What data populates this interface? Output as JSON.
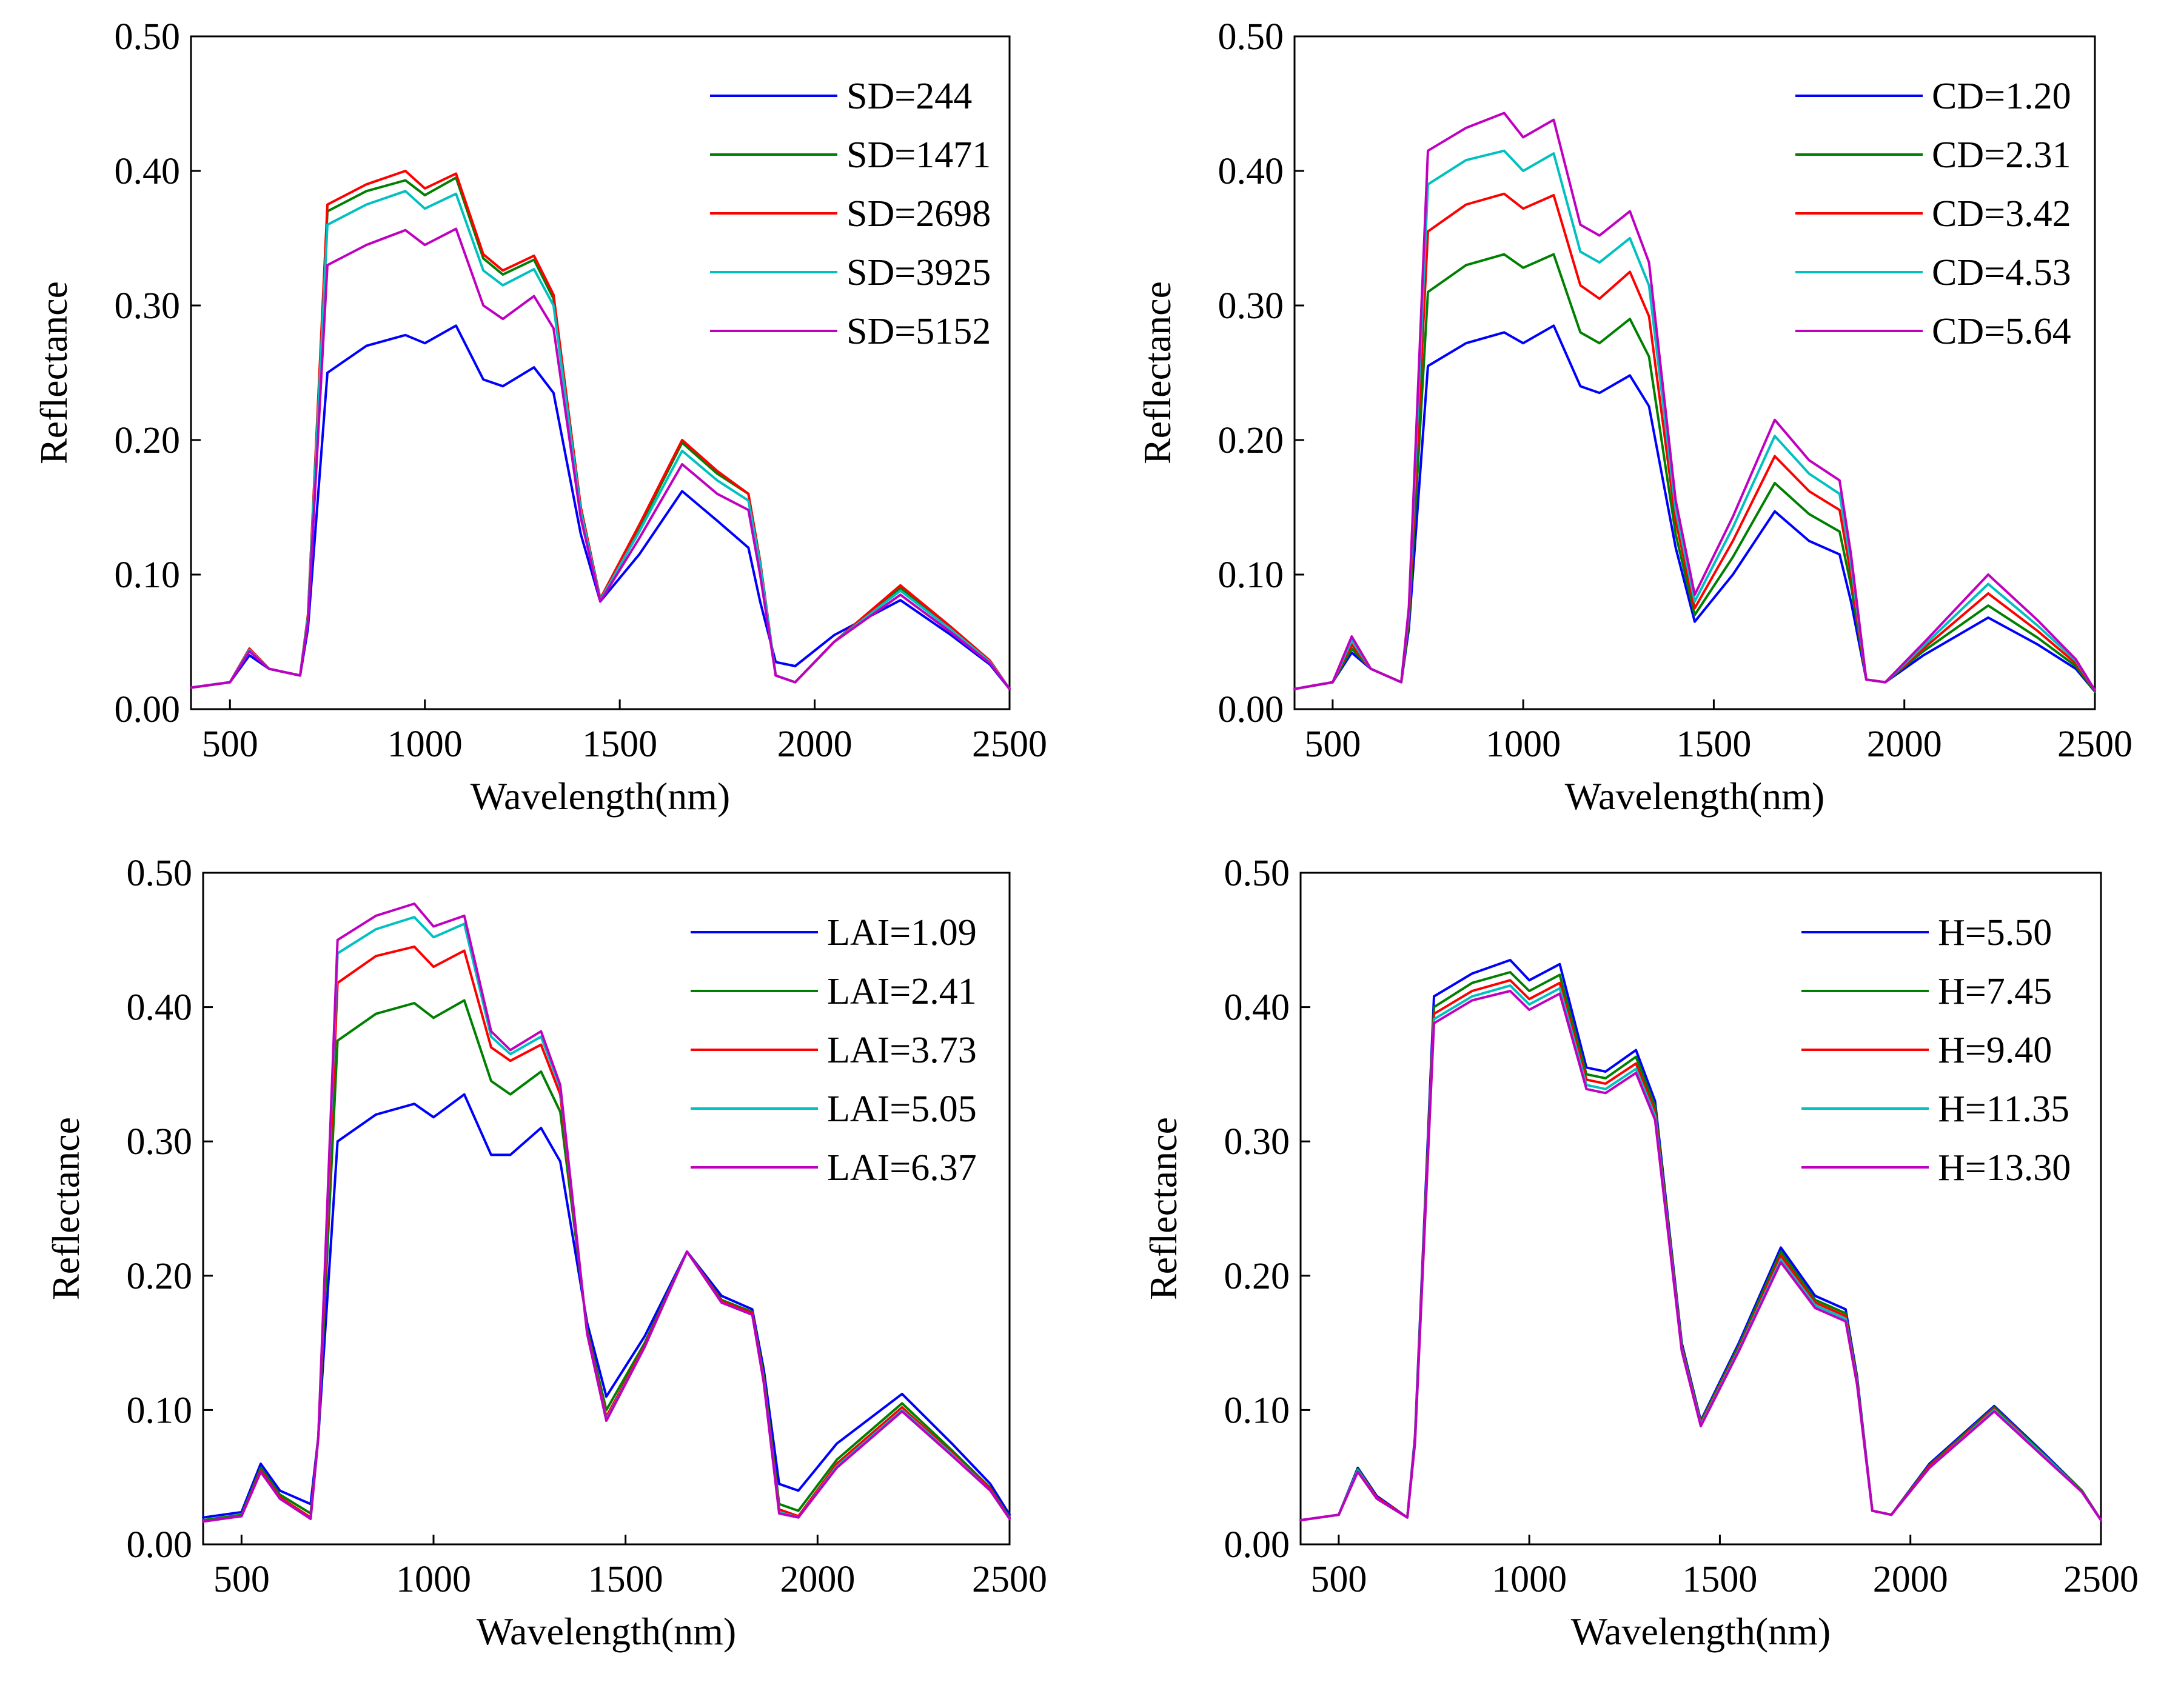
{
  "chart_data": [
    {
      "type": "line",
      "xlabel": "Wavelength(nm)",
      "ylabel": "Reflectance",
      "xlim": [
        400,
        2500
      ],
      "ylim": [
        0,
        0.5
      ],
      "xticks": [
        500,
        1000,
        1500,
        2000,
        2500
      ],
      "yticks": [
        0.0,
        0.1,
        0.2,
        0.3,
        0.4,
        0.5
      ],
      "ytick_labels": [
        "0.00",
        "0.10",
        "0.20",
        "0.30",
        "0.40",
        "0.50"
      ],
      "legend_position": "top-right",
      "grid": false,
      "x": [
        400,
        500,
        550,
        600,
        680,
        700,
        750,
        850,
        950,
        1000,
        1080,
        1150,
        1200,
        1280,
        1330,
        1400,
        1450,
        1550,
        1660,
        1750,
        1830,
        1860,
        1900,
        1950,
        2050,
        2220,
        2350,
        2450,
        2500
      ],
      "series": [
        {
          "name": "SD=244",
          "color": "#0000ff",
          "values": [
            0.016,
            0.02,
            0.04,
            0.03,
            0.025,
            0.06,
            0.25,
            0.27,
            0.278,
            0.272,
            0.285,
            0.245,
            0.24,
            0.254,
            0.235,
            0.13,
            0.08,
            0.115,
            0.162,
            0.14,
            0.12,
            0.08,
            0.035,
            0.032,
            0.055,
            0.081,
            0.055,
            0.033,
            0.015
          ]
        },
        {
          "name": "SD=1471",
          "color": "#008000",
          "values": [
            0.016,
            0.02,
            0.045,
            0.03,
            0.025,
            0.07,
            0.37,
            0.385,
            0.393,
            0.382,
            0.395,
            0.335,
            0.323,
            0.334,
            0.305,
            0.15,
            0.082,
            0.135,
            0.198,
            0.175,
            0.16,
            0.11,
            0.025,
            0.02,
            0.05,
            0.09,
            0.06,
            0.035,
            0.015
          ]
        },
        {
          "name": "SD=2698",
          "color": "#ff0000",
          "values": [
            0.016,
            0.02,
            0.045,
            0.03,
            0.025,
            0.07,
            0.375,
            0.39,
            0.4,
            0.387,
            0.398,
            0.338,
            0.326,
            0.337,
            0.308,
            0.15,
            0.082,
            0.137,
            0.2,
            0.177,
            0.16,
            0.11,
            0.025,
            0.02,
            0.05,
            0.092,
            0.061,
            0.036,
            0.015
          ]
        },
        {
          "name": "SD=3925",
          "color": "#00c0c0",
          "values": [
            0.016,
            0.02,
            0.044,
            0.03,
            0.025,
            0.068,
            0.36,
            0.375,
            0.385,
            0.372,
            0.383,
            0.326,
            0.315,
            0.327,
            0.3,
            0.147,
            0.081,
            0.132,
            0.192,
            0.17,
            0.155,
            0.108,
            0.025,
            0.02,
            0.05,
            0.088,
            0.059,
            0.035,
            0.015
          ]
        },
        {
          "name": "SD=5152",
          "color": "#c000c0",
          "values": [
            0.016,
            0.02,
            0.043,
            0.03,
            0.025,
            0.065,
            0.33,
            0.345,
            0.356,
            0.345,
            0.357,
            0.3,
            0.29,
            0.307,
            0.283,
            0.142,
            0.08,
            0.127,
            0.182,
            0.16,
            0.148,
            0.1,
            0.025,
            0.02,
            0.05,
            0.085,
            0.057,
            0.034,
            0.015
          ]
        }
      ]
    },
    {
      "type": "line",
      "xlabel": "Wavelength(nm)",
      "ylabel": "Reflectance",
      "xlim": [
        400,
        2500
      ],
      "ylim": [
        0,
        0.5
      ],
      "xticks": [
        500,
        1000,
        1500,
        2000,
        2500
      ],
      "yticks": [
        0.0,
        0.1,
        0.2,
        0.3,
        0.4,
        0.5
      ],
      "ytick_labels": [
        "0.00",
        "0.10",
        "0.20",
        "0.30",
        "0.40",
        "0.50"
      ],
      "legend_position": "top-right",
      "grid": false,
      "x": [
        400,
        500,
        550,
        600,
        680,
        700,
        750,
        850,
        950,
        1000,
        1080,
        1150,
        1200,
        1280,
        1330,
        1400,
        1450,
        1550,
        1660,
        1750,
        1830,
        1860,
        1900,
        1950,
        2050,
        2220,
        2350,
        2450,
        2500
      ],
      "series": [
        {
          "name": "CD=1.20",
          "color": "#0000ff",
          "values": [
            0.015,
            0.02,
            0.042,
            0.03,
            0.02,
            0.06,
            0.255,
            0.272,
            0.28,
            0.272,
            0.285,
            0.24,
            0.235,
            0.248,
            0.225,
            0.12,
            0.065,
            0.1,
            0.147,
            0.125,
            0.115,
            0.08,
            0.022,
            0.02,
            0.04,
            0.068,
            0.048,
            0.03,
            0.013
          ]
        },
        {
          "name": "CD=2.31",
          "color": "#008000",
          "values": [
            0.015,
            0.02,
            0.045,
            0.03,
            0.02,
            0.065,
            0.31,
            0.33,
            0.338,
            0.328,
            0.338,
            0.28,
            0.272,
            0.29,
            0.262,
            0.13,
            0.07,
            0.113,
            0.168,
            0.145,
            0.132,
            0.092,
            0.022,
            0.02,
            0.043,
            0.077,
            0.053,
            0.032,
            0.013
          ]
        },
        {
          "name": "CD=3.42",
          "color": "#ff0000",
          "values": [
            0.015,
            0.02,
            0.048,
            0.03,
            0.02,
            0.07,
            0.355,
            0.375,
            0.383,
            0.372,
            0.382,
            0.315,
            0.305,
            0.325,
            0.292,
            0.14,
            0.075,
            0.125,
            0.188,
            0.162,
            0.148,
            0.1,
            0.022,
            0.02,
            0.045,
            0.086,
            0.058,
            0.034,
            0.014
          ]
        },
        {
          "name": "CD=4.53",
          "color": "#00c0c0",
          "values": [
            0.015,
            0.02,
            0.051,
            0.03,
            0.02,
            0.073,
            0.39,
            0.408,
            0.415,
            0.4,
            0.413,
            0.34,
            0.332,
            0.35,
            0.315,
            0.148,
            0.08,
            0.135,
            0.203,
            0.175,
            0.16,
            0.108,
            0.022,
            0.02,
            0.047,
            0.093,
            0.062,
            0.036,
            0.014
          ]
        },
        {
          "name": "CD=5.64",
          "color": "#c000c0",
          "values": [
            0.015,
            0.02,
            0.054,
            0.03,
            0.02,
            0.076,
            0.415,
            0.432,
            0.443,
            0.425,
            0.438,
            0.36,
            0.352,
            0.37,
            0.332,
            0.155,
            0.085,
            0.143,
            0.215,
            0.185,
            0.17,
            0.115,
            0.022,
            0.02,
            0.049,
            0.1,
            0.066,
            0.037,
            0.014
          ]
        }
      ]
    },
    {
      "type": "line",
      "xlabel": "Wavelength(nm)",
      "ylabel": "Reflectance",
      "xlim": [
        400,
        2500
      ],
      "ylim": [
        0,
        0.5
      ],
      "xticks": [
        500,
        1000,
        1500,
        2000,
        2500
      ],
      "yticks": [
        0.0,
        0.1,
        0.2,
        0.3,
        0.4,
        0.5
      ],
      "ytick_labels": [
        "0.00",
        "0.10",
        "0.20",
        "0.30",
        "0.40",
        "0.50"
      ],
      "legend_position": "top-right",
      "grid": false,
      "x": [
        400,
        500,
        550,
        600,
        680,
        700,
        750,
        850,
        950,
        1000,
        1080,
        1150,
        1200,
        1280,
        1330,
        1400,
        1450,
        1550,
        1660,
        1750,
        1830,
        1860,
        1900,
        1950,
        2050,
        2220,
        2350,
        2450,
        2500
      ],
      "series": [
        {
          "name": "LAI=1.09",
          "color": "#0000ff",
          "values": [
            0.02,
            0.024,
            0.06,
            0.04,
            0.03,
            0.08,
            0.3,
            0.32,
            0.328,
            0.318,
            0.335,
            0.29,
            0.29,
            0.31,
            0.285,
            0.165,
            0.11,
            0.155,
            0.218,
            0.185,
            0.175,
            0.13,
            0.045,
            0.04,
            0.075,
            0.112,
            0.075,
            0.045,
            0.022
          ]
        },
        {
          "name": "LAI=2.41",
          "color": "#008000",
          "values": [
            0.018,
            0.022,
            0.057,
            0.037,
            0.023,
            0.08,
            0.375,
            0.395,
            0.403,
            0.392,
            0.405,
            0.345,
            0.335,
            0.352,
            0.322,
            0.16,
            0.1,
            0.15,
            0.218,
            0.182,
            0.173,
            0.125,
            0.03,
            0.025,
            0.063,
            0.105,
            0.07,
            0.042,
            0.02
          ]
        },
        {
          "name": "LAI=3.73",
          "color": "#ff0000",
          "values": [
            0.017,
            0.021,
            0.055,
            0.035,
            0.02,
            0.08,
            0.418,
            0.438,
            0.445,
            0.43,
            0.442,
            0.37,
            0.36,
            0.372,
            0.335,
            0.158,
            0.095,
            0.148,
            0.218,
            0.181,
            0.172,
            0.122,
            0.026,
            0.021,
            0.06,
            0.102,
            0.068,
            0.041,
            0.019
          ]
        },
        {
          "name": "LAI=5.05",
          "color": "#00c0c0",
          "values": [
            0.017,
            0.021,
            0.054,
            0.034,
            0.019,
            0.08,
            0.44,
            0.458,
            0.467,
            0.452,
            0.462,
            0.378,
            0.365,
            0.378,
            0.34,
            0.157,
            0.093,
            0.147,
            0.218,
            0.18,
            0.171,
            0.121,
            0.024,
            0.02,
            0.058,
            0.1,
            0.067,
            0.04,
            0.019
          ]
        },
        {
          "name": "LAI=6.37",
          "color": "#c000c0",
          "values": [
            0.017,
            0.021,
            0.054,
            0.034,
            0.019,
            0.08,
            0.45,
            0.468,
            0.477,
            0.46,
            0.468,
            0.382,
            0.368,
            0.382,
            0.342,
            0.157,
            0.092,
            0.147,
            0.218,
            0.18,
            0.171,
            0.12,
            0.023,
            0.02,
            0.057,
            0.099,
            0.066,
            0.04,
            0.019
          ]
        }
      ]
    },
    {
      "type": "line",
      "xlabel": "Wavelength(nm)",
      "ylabel": "Reflectance",
      "xlim": [
        400,
        2500
      ],
      "ylim": [
        0,
        0.5
      ],
      "xticks": [
        500,
        1000,
        1500,
        2000,
        2500
      ],
      "yticks": [
        0.0,
        0.1,
        0.2,
        0.3,
        0.4,
        0.5
      ],
      "ytick_labels": [
        "0.00",
        "0.10",
        "0.20",
        "0.30",
        "0.40",
        "0.50"
      ],
      "legend_position": "top-right",
      "grid": false,
      "x": [
        400,
        500,
        550,
        600,
        680,
        700,
        750,
        850,
        950,
        1000,
        1080,
        1150,
        1200,
        1280,
        1330,
        1400,
        1450,
        1550,
        1660,
        1750,
        1830,
        1860,
        1900,
        1950,
        2050,
        2220,
        2350,
        2450,
        2500
      ],
      "series": [
        {
          "name": "H=5.50",
          "color": "#0000ff",
          "values": [
            0.018,
            0.022,
            0.057,
            0.036,
            0.02,
            0.08,
            0.408,
            0.425,
            0.435,
            0.42,
            0.432,
            0.355,
            0.352,
            0.368,
            0.33,
            0.15,
            0.092,
            0.15,
            0.221,
            0.185,
            0.175,
            0.125,
            0.025,
            0.022,
            0.06,
            0.103,
            0.068,
            0.04,
            0.018
          ]
        },
        {
          "name": "H=7.45",
          "color": "#008000",
          "values": [
            0.018,
            0.022,
            0.056,
            0.035,
            0.02,
            0.078,
            0.4,
            0.418,
            0.426,
            0.412,
            0.424,
            0.35,
            0.347,
            0.363,
            0.326,
            0.148,
            0.091,
            0.148,
            0.218,
            0.182,
            0.172,
            0.123,
            0.025,
            0.022,
            0.059,
            0.102,
            0.067,
            0.04,
            0.018
          ]
        },
        {
          "name": "H=9.40",
          "color": "#ff0000",
          "values": [
            0.018,
            0.022,
            0.055,
            0.035,
            0.02,
            0.077,
            0.395,
            0.412,
            0.42,
            0.406,
            0.418,
            0.346,
            0.343,
            0.358,
            0.322,
            0.146,
            0.09,
            0.146,
            0.215,
            0.18,
            0.17,
            0.121,
            0.025,
            0.022,
            0.058,
            0.101,
            0.066,
            0.039,
            0.018
          ]
        },
        {
          "name": "H=11.35",
          "color": "#00c0c0",
          "values": [
            0.018,
            0.022,
            0.055,
            0.034,
            0.02,
            0.076,
            0.391,
            0.408,
            0.416,
            0.402,
            0.414,
            0.342,
            0.339,
            0.354,
            0.319,
            0.145,
            0.089,
            0.145,
            0.212,
            0.178,
            0.168,
            0.12,
            0.025,
            0.022,
            0.057,
            0.1,
            0.066,
            0.039,
            0.018
          ]
        },
        {
          "name": "H=13.30",
          "color": "#c000c0",
          "values": [
            0.018,
            0.022,
            0.054,
            0.034,
            0.02,
            0.075,
            0.388,
            0.405,
            0.412,
            0.398,
            0.41,
            0.339,
            0.336,
            0.351,
            0.316,
            0.144,
            0.088,
            0.144,
            0.21,
            0.176,
            0.166,
            0.119,
            0.025,
            0.022,
            0.057,
            0.099,
            0.065,
            0.039,
            0.018
          ]
        }
      ]
    }
  ]
}
